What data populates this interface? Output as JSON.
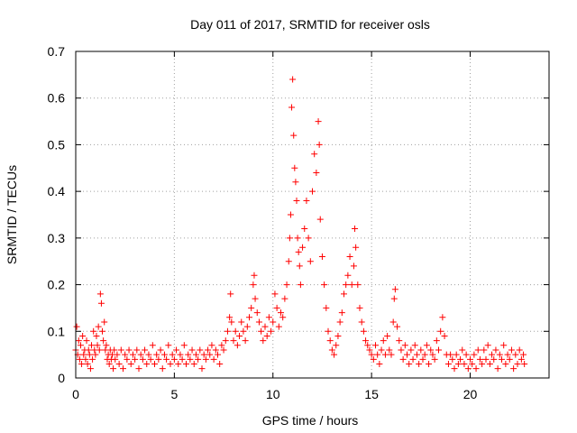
{
  "chart_data": {
    "type": "scatter",
    "title": "Day 011 of 2017, SRMTID for receiver osls",
    "xlabel": "GPS time / hours",
    "ylabel": "SRMTID / TECUs",
    "xlim": [
      0,
      24
    ],
    "ylim": [
      0,
      0.7
    ],
    "xticks": [
      0,
      5,
      10,
      15,
      20
    ],
    "yticks": [
      0,
      0.1,
      0.2,
      0.3,
      0.4,
      0.5,
      0.6,
      0.7
    ],
    "xtick_labels": [
      "0",
      "5",
      "10",
      "15",
      "20"
    ],
    "ytick_labels": [
      "0",
      "0.1",
      "0.2",
      "0.3",
      "0.4",
      "0.5",
      "0.6",
      "0.7"
    ],
    "grid": true,
    "marker": "plus",
    "color": "#ff0000",
    "series": [
      {
        "name": "SRMTID",
        "points": [
          [
            0.0,
            0.06
          ],
          [
            0.05,
            0.11
          ],
          [
            0.1,
            0.05
          ],
          [
            0.15,
            0.08
          ],
          [
            0.2,
            0.04
          ],
          [
            0.25,
            0.07
          ],
          [
            0.3,
            0.03
          ],
          [
            0.35,
            0.09
          ],
          [
            0.4,
            0.05
          ],
          [
            0.45,
            0.06
          ],
          [
            0.5,
            0.04
          ],
          [
            0.55,
            0.08
          ],
          [
            0.6,
            0.03
          ],
          [
            0.65,
            0.06
          ],
          [
            0.7,
            0.05
          ],
          [
            0.75,
            0.02
          ],
          [
            0.8,
            0.07
          ],
          [
            0.85,
            0.04
          ],
          [
            0.9,
            0.1
          ],
          [
            0.95,
            0.06
          ],
          [
            1.0,
            0.05
          ],
          [
            1.05,
            0.09
          ],
          [
            1.1,
            0.07
          ],
          [
            1.15,
            0.11
          ],
          [
            1.2,
            0.06
          ],
          [
            1.25,
            0.18
          ],
          [
            1.3,
            0.16
          ],
          [
            1.35,
            0.1
          ],
          [
            1.4,
            0.08
          ],
          [
            1.45,
            0.12
          ],
          [
            1.5,
            0.06
          ],
          [
            1.55,
            0.07
          ],
          [
            1.6,
            0.04
          ],
          [
            1.65,
            0.05
          ],
          [
            1.7,
            0.03
          ],
          [
            1.75,
            0.06
          ],
          [
            1.8,
            0.04
          ],
          [
            1.85,
            0.05
          ],
          [
            1.9,
            0.02
          ],
          [
            1.95,
            0.06
          ],
          [
            2.0,
            0.04
          ],
          [
            2.1,
            0.05
          ],
          [
            2.2,
            0.03
          ],
          [
            2.3,
            0.06
          ],
          [
            2.4,
            0.02
          ],
          [
            2.5,
            0.05
          ],
          [
            2.6,
            0.04
          ],
          [
            2.7,
            0.06
          ],
          [
            2.8,
            0.03
          ],
          [
            2.9,
            0.05
          ],
          [
            3.0,
            0.04
          ],
          [
            3.1,
            0.06
          ],
          [
            3.2,
            0.02
          ],
          [
            3.3,
            0.05
          ],
          [
            3.4,
            0.04
          ],
          [
            3.5,
            0.06
          ],
          [
            3.6,
            0.03
          ],
          [
            3.7,
            0.05
          ],
          [
            3.8,
            0.04
          ],
          [
            3.9,
            0.07
          ],
          [
            4.0,
            0.03
          ],
          [
            4.1,
            0.05
          ],
          [
            4.2,
            0.04
          ],
          [
            4.3,
            0.06
          ],
          [
            4.4,
            0.02
          ],
          [
            4.5,
            0.05
          ],
          [
            4.6,
            0.04
          ],
          [
            4.7,
            0.07
          ],
          [
            4.8,
            0.03
          ],
          [
            4.9,
            0.05
          ],
          [
            5.0,
            0.04
          ],
          [
            5.1,
            0.06
          ],
          [
            5.2,
            0.03
          ],
          [
            5.3,
            0.05
          ],
          [
            5.4,
            0.04
          ],
          [
            5.5,
            0.07
          ],
          [
            5.6,
            0.03
          ],
          [
            5.7,
            0.05
          ],
          [
            5.8,
            0.04
          ],
          [
            5.9,
            0.06
          ],
          [
            6.0,
            0.03
          ],
          [
            6.1,
            0.05
          ],
          [
            6.2,
            0.04
          ],
          [
            6.3,
            0.06
          ],
          [
            6.4,
            0.02
          ],
          [
            6.5,
            0.05
          ],
          [
            6.6,
            0.04
          ],
          [
            6.7,
            0.06
          ],
          [
            6.8,
            0.05
          ],
          [
            6.9,
            0.07
          ],
          [
            7.0,
            0.04
          ],
          [
            7.1,
            0.06
          ],
          [
            7.2,
            0.05
          ],
          [
            7.3,
            0.03
          ],
          [
            7.4,
            0.07
          ],
          [
            7.5,
            0.06
          ],
          [
            7.6,
            0.08
          ],
          [
            7.7,
            0.1
          ],
          [
            7.8,
            0.13
          ],
          [
            7.85,
            0.18
          ],
          [
            7.9,
            0.12
          ],
          [
            8.0,
            0.08
          ],
          [
            8.1,
            0.1
          ],
          [
            8.2,
            0.07
          ],
          [
            8.3,
            0.09
          ],
          [
            8.4,
            0.12
          ],
          [
            8.5,
            0.1
          ],
          [
            8.6,
            0.08
          ],
          [
            8.7,
            0.11
          ],
          [
            8.8,
            0.13
          ],
          [
            8.9,
            0.15
          ],
          [
            9.0,
            0.2
          ],
          [
            9.05,
            0.22
          ],
          [
            9.1,
            0.17
          ],
          [
            9.2,
            0.14
          ],
          [
            9.3,
            0.12
          ],
          [
            9.4,
            0.1
          ],
          [
            9.5,
            0.08
          ],
          [
            9.6,
            0.11
          ],
          [
            9.7,
            0.09
          ],
          [
            9.8,
            0.13
          ],
          [
            9.9,
            0.1
          ],
          [
            10.0,
            0.12
          ],
          [
            10.1,
            0.18
          ],
          [
            10.2,
            0.15
          ],
          [
            10.3,
            0.11
          ],
          [
            10.4,
            0.14
          ],
          [
            10.5,
            0.13
          ],
          [
            10.6,
            0.17
          ],
          [
            10.7,
            0.2
          ],
          [
            10.8,
            0.25
          ],
          [
            10.85,
            0.3
          ],
          [
            10.9,
            0.35
          ],
          [
            10.95,
            0.58
          ],
          [
            11.0,
            0.64
          ],
          [
            11.05,
            0.52
          ],
          [
            11.1,
            0.45
          ],
          [
            11.15,
            0.42
          ],
          [
            11.2,
            0.38
          ],
          [
            11.25,
            0.3
          ],
          [
            11.3,
            0.27
          ],
          [
            11.35,
            0.24
          ],
          [
            11.4,
            0.2
          ],
          [
            11.5,
            0.28
          ],
          [
            11.6,
            0.32
          ],
          [
            11.7,
            0.38
          ],
          [
            11.8,
            0.3
          ],
          [
            11.9,
            0.25
          ],
          [
            12.0,
            0.4
          ],
          [
            12.1,
            0.48
          ],
          [
            12.2,
            0.44
          ],
          [
            12.3,
            0.55
          ],
          [
            12.35,
            0.5
          ],
          [
            12.4,
            0.34
          ],
          [
            12.5,
            0.26
          ],
          [
            12.6,
            0.2
          ],
          [
            12.7,
            0.15
          ],
          [
            12.8,
            0.1
          ],
          [
            12.9,
            0.08
          ],
          [
            13.0,
            0.06
          ],
          [
            13.1,
            0.05
          ],
          [
            13.2,
            0.07
          ],
          [
            13.3,
            0.09
          ],
          [
            13.4,
            0.12
          ],
          [
            13.5,
            0.14
          ],
          [
            13.6,
            0.18
          ],
          [
            13.7,
            0.2
          ],
          [
            13.8,
            0.22
          ],
          [
            13.9,
            0.26
          ],
          [
            14.0,
            0.2
          ],
          [
            14.1,
            0.24
          ],
          [
            14.15,
            0.32
          ],
          [
            14.2,
            0.28
          ],
          [
            14.3,
            0.2
          ],
          [
            14.4,
            0.15
          ],
          [
            14.5,
            0.12
          ],
          [
            14.6,
            0.1
          ],
          [
            14.7,
            0.08
          ],
          [
            14.8,
            0.07
          ],
          [
            14.9,
            0.06
          ],
          [
            15.0,
            0.05
          ],
          [
            15.1,
            0.04
          ],
          [
            15.2,
            0.07
          ],
          [
            15.3,
            0.05
          ],
          [
            15.4,
            0.03
          ],
          [
            15.5,
            0.06
          ],
          [
            15.6,
            0.08
          ],
          [
            15.7,
            0.05
          ],
          [
            15.8,
            0.09
          ],
          [
            15.9,
            0.06
          ],
          [
            16.0,
            0.05
          ],
          [
            16.1,
            0.12
          ],
          [
            16.15,
            0.17
          ],
          [
            16.2,
            0.19
          ],
          [
            16.3,
            0.11
          ],
          [
            16.4,
            0.08
          ],
          [
            16.5,
            0.06
          ],
          [
            16.6,
            0.04
          ],
          [
            16.7,
            0.07
          ],
          [
            16.8,
            0.05
          ],
          [
            16.9,
            0.03
          ],
          [
            17.0,
            0.06
          ],
          [
            17.1,
            0.04
          ],
          [
            17.2,
            0.07
          ],
          [
            17.3,
            0.05
          ],
          [
            17.4,
            0.03
          ],
          [
            17.5,
            0.06
          ],
          [
            17.6,
            0.04
          ],
          [
            17.7,
            0.05
          ],
          [
            17.8,
            0.07
          ],
          [
            17.9,
            0.03
          ],
          [
            18.0,
            0.06
          ],
          [
            18.1,
            0.05
          ],
          [
            18.2,
            0.04
          ],
          [
            18.3,
            0.08
          ],
          [
            18.4,
            0.06
          ],
          [
            18.5,
            0.1
          ],
          [
            18.6,
            0.13
          ],
          [
            18.7,
            0.09
          ],
          [
            18.8,
            0.05
          ],
          [
            18.9,
            0.03
          ],
          [
            19.0,
            0.05
          ],
          [
            19.1,
            0.04
          ],
          [
            19.2,
            0.02
          ],
          [
            19.3,
            0.05
          ],
          [
            19.4,
            0.03
          ],
          [
            19.5,
            0.04
          ],
          [
            19.6,
            0.06
          ],
          [
            19.7,
            0.03
          ],
          [
            19.8,
            0.05
          ],
          [
            19.9,
            0.02
          ],
          [
            20.0,
            0.04
          ],
          [
            20.1,
            0.03
          ],
          [
            20.2,
            0.05
          ],
          [
            20.3,
            0.02
          ],
          [
            20.4,
            0.06
          ],
          [
            20.5,
            0.04
          ],
          [
            20.6,
            0.03
          ],
          [
            20.7,
            0.06
          ],
          [
            20.8,
            0.04
          ],
          [
            20.9,
            0.07
          ],
          [
            21.0,
            0.03
          ],
          [
            21.1,
            0.05
          ],
          [
            21.2,
            0.04
          ],
          [
            21.3,
            0.06
          ],
          [
            21.4,
            0.02
          ],
          [
            21.5,
            0.05
          ],
          [
            21.6,
            0.04
          ],
          [
            21.7,
            0.07
          ],
          [
            21.8,
            0.03
          ],
          [
            21.9,
            0.05
          ],
          [
            22.0,
            0.04
          ],
          [
            22.1,
            0.06
          ],
          [
            22.2,
            0.02
          ],
          [
            22.3,
            0.05
          ],
          [
            22.4,
            0.03
          ],
          [
            22.5,
            0.06
          ],
          [
            22.6,
            0.04
          ],
          [
            22.7,
            0.05
          ],
          [
            22.75,
            0.03
          ]
        ]
      }
    ]
  }
}
